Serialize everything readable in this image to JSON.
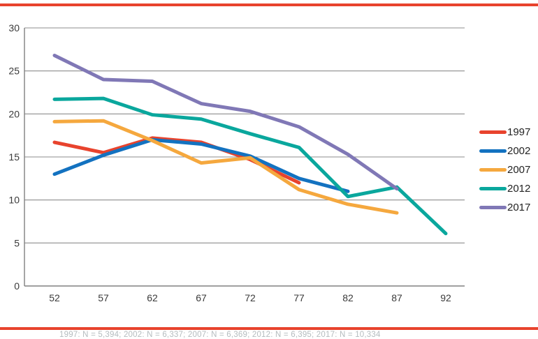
{
  "decor": {
    "top_bar_color": "#e8432d",
    "bottom_bar_color": "#e8432d",
    "grid_color": "#8c8c8c",
    "tick_label_color": "#3a3a3a",
    "footnote_color": "#b5bcbf"
  },
  "legend": {
    "items": [
      {
        "label": "1997",
        "color": "#e8432d"
      },
      {
        "label": "2002",
        "color": "#1372c0"
      },
      {
        "label": "2007",
        "color": "#f5a83e"
      },
      {
        "label": "2012",
        "color": "#0aa79d"
      },
      {
        "label": "2017",
        "color": "#8078b6"
      }
    ]
  },
  "footnote": {
    "text": "1997: N = 5,394; 2002: N = 6,337; 2007: N = 6,369; 2012: N = 6,395; 2017: N = 10,334"
  },
  "chart_data": {
    "type": "line",
    "title": "",
    "xlabel": "",
    "ylabel": "",
    "x": [
      52,
      57,
      62,
      67,
      72,
      77,
      82,
      87,
      92
    ],
    "x_tick_labels": [
      "52",
      "57",
      "62",
      "67",
      "72",
      "77",
      "82",
      "87",
      "92"
    ],
    "yticks": [
      0,
      5,
      10,
      15,
      20,
      25,
      30
    ],
    "ylim": [
      0,
      30
    ],
    "grid": "horizontal",
    "legend_position": "right",
    "series": [
      {
        "name": "1997",
        "color": "#e8432d",
        "values": [
          16.7,
          15.5,
          17.2,
          16.7,
          14.7,
          12.0,
          null,
          null,
          null
        ]
      },
      {
        "name": "2002",
        "color": "#1372c0",
        "values": [
          13.0,
          15.2,
          17.0,
          16.5,
          15.1,
          12.5,
          11.0,
          null,
          null
        ]
      },
      {
        "name": "2007",
        "color": "#f5a83e",
        "values": [
          19.1,
          19.2,
          16.9,
          14.3,
          14.9,
          11.2,
          9.5,
          8.5,
          null
        ]
      },
      {
        "name": "2012",
        "color": "#0aa79d",
        "values": [
          21.7,
          21.8,
          19.9,
          19.4,
          17.7,
          16.1,
          10.4,
          11.5,
          6.1
        ]
      },
      {
        "name": "2017",
        "color": "#8078b6",
        "values": [
          26.8,
          24.0,
          23.8,
          21.2,
          20.3,
          18.5,
          15.3,
          11.3,
          null
        ]
      }
    ]
  }
}
